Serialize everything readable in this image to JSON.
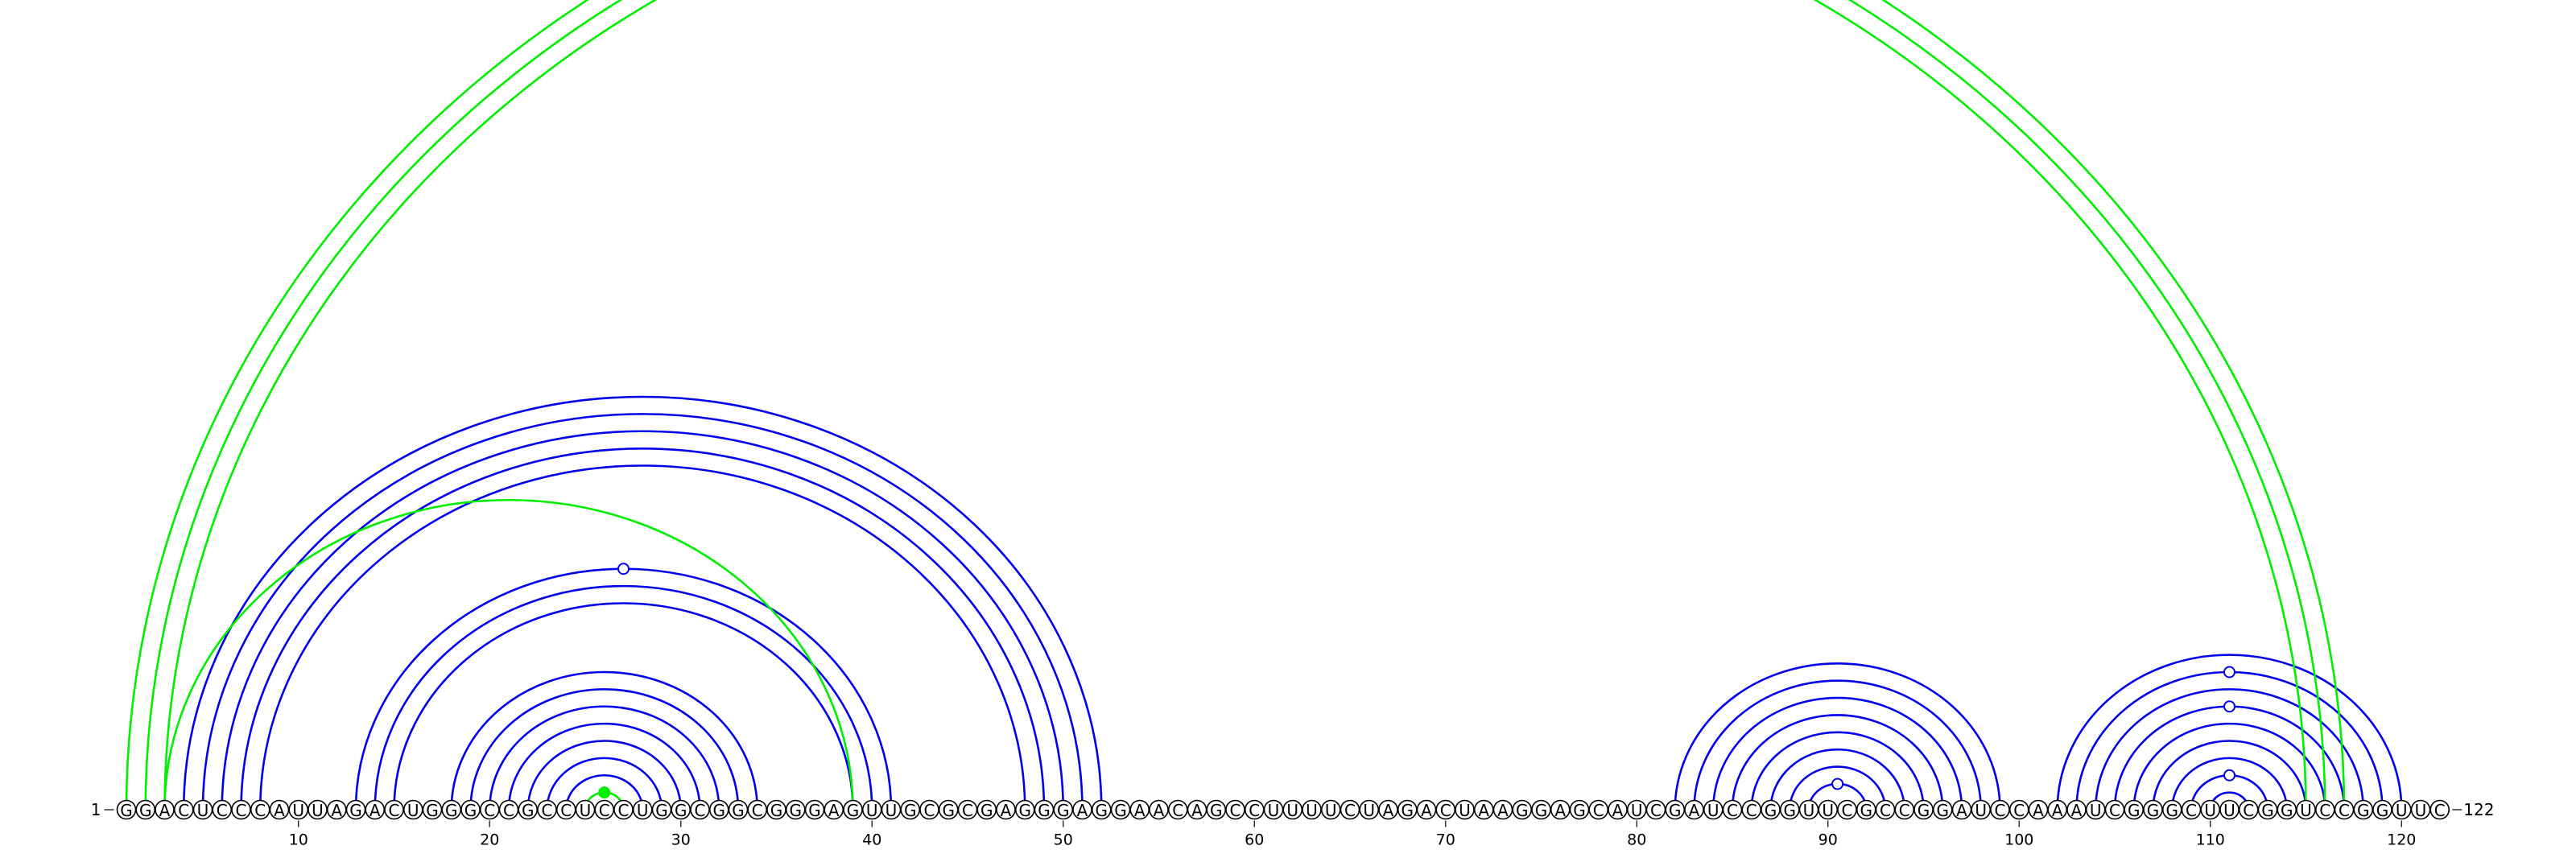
{
  "chart_data": {
    "type": "arc-diagram",
    "sequence": "GGACUCCCAUUAGACUGGGCCGCCUCCUGGCGGCGGGAGUUGCGCGAGGGAGGAACAGCCUUUUCUAGACUAAGGAGCAUCGAUCCGGUUCGCCGGAUCCAAAUCGGGCUUCGGUCCGGUUC",
    "length": 122,
    "start_label": "1",
    "end_label": "122",
    "ticks": [
      10,
      20,
      30,
      40,
      50,
      60,
      70,
      80,
      90,
      100,
      110,
      120
    ],
    "colors": {
      "paired": "#0000ee",
      "pseudoknot": "#00ee00",
      "nucleotide_border": "#000000"
    },
    "pairs_blue": [
      [
        4,
        52
      ],
      [
        5,
        51
      ],
      [
        6,
        50
      ],
      [
        7,
        49
      ],
      [
        8,
        48
      ],
      [
        13,
        41
      ],
      [
        14,
        40
      ],
      [
        15,
        39
      ],
      [
        18,
        34
      ],
      [
        19,
        33
      ],
      [
        20,
        32
      ],
      [
        21,
        31
      ],
      [
        22,
        30
      ],
      [
        23,
        29
      ],
      [
        24,
        28
      ],
      [
        82,
        99
      ],
      [
        83,
        98
      ],
      [
        84,
        97
      ],
      [
        85,
        96
      ],
      [
        86,
        95
      ],
      [
        87,
        94
      ],
      [
        88,
        93
      ],
      [
        89,
        92
      ],
      [
        102,
        120
      ],
      [
        103,
        119
      ],
      [
        104,
        118
      ],
      [
        105,
        117
      ],
      [
        106,
        116
      ],
      [
        107,
        115
      ],
      [
        108,
        114
      ],
      [
        109,
        113
      ],
      [
        110,
        112
      ]
    ],
    "pairs_green": [
      [
        1,
        117
      ],
      [
        2,
        116
      ],
      [
        3,
        115
      ],
      [
        3,
        39
      ],
      [
        25,
        27
      ]
    ],
    "markers": [
      {
        "between": [
          13,
          41
        ],
        "color": "blue"
      },
      {
        "between": [
          89,
          92
        ],
        "color": "blue"
      },
      {
        "between": [
          103,
          119
        ],
        "color": "blue"
      },
      {
        "between": [
          105,
          117
        ],
        "color": "blue"
      },
      {
        "between": [
          109,
          113
        ],
        "color": "blue"
      },
      {
        "between": [
          25,
          27
        ],
        "color": "green"
      }
    ]
  }
}
